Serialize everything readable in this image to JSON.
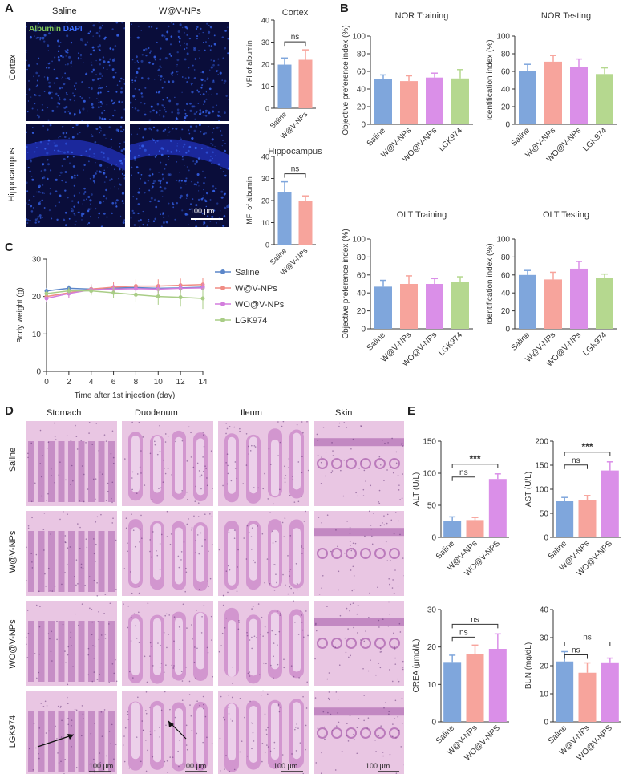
{
  "panel_labels": {
    "A": "A",
    "B": "B",
    "C": "C",
    "D": "D",
    "E": "E"
  },
  "panelA": {
    "col_titles": [
      "Saline",
      "W@V-NPs"
    ],
    "row_titles": [
      "Cortex",
      "Hippocampus"
    ],
    "legend_albumin": "Albumin",
    "legend_dapi": "DAPI",
    "scale_bar": "100 μm",
    "colors": {
      "albumin": "#7ec85a",
      "dapi": "#3a6cff",
      "tissue": "#0a0d3a"
    }
  },
  "panelD": {
    "col_titles": [
      "Stomach",
      "Duodenum",
      "Ileum",
      "Skin"
    ],
    "row_titles": [
      "Saline",
      "W@V-NPs",
      "WO@V-NPs",
      "LGK974"
    ],
    "scale_bars": [
      "100 μm",
      "100 μm",
      "100 μm",
      "100 μm"
    ],
    "colors": {
      "he_light": "#e9c6e3",
      "he_dark": "#9c4aa2"
    }
  },
  "chart_data": [
    {
      "id": "A-cortex",
      "type": "bar",
      "title": "Cortex",
      "ylabel": "MFI of albumin",
      "categories": [
        "Saline",
        "W@V-NPs"
      ],
      "values": [
        19.8,
        22.0
      ],
      "errors": [
        3.0,
        4.5
      ],
      "ylim": [
        0,
        40
      ],
      "yticks": [
        0,
        10,
        20,
        30,
        40
      ],
      "sig": [
        {
          "from": 0,
          "to": 1,
          "label": "ns"
        }
      ]
    },
    {
      "id": "A-hippocampus",
      "type": "bar",
      "title": "Hippocampus",
      "ylabel": "MFI of albumin",
      "categories": [
        "Saline",
        "W@V-NPs"
      ],
      "values": [
        24.0,
        19.8
      ],
      "errors": [
        4.5,
        2.3
      ],
      "ylim": [
        0,
        40
      ],
      "yticks": [
        0,
        10,
        20,
        30,
        40
      ],
      "sig": [
        {
          "from": 0,
          "to": 1,
          "label": "ns"
        }
      ]
    },
    {
      "id": "B-nor-training",
      "type": "bar",
      "title": "NOR Training",
      "ylabel": "Objective preference index (%)",
      "categories": [
        "Saline",
        "W@V-NPs",
        "WO@V-NPs",
        "LGK974"
      ],
      "values": [
        51,
        49,
        53,
        52
      ],
      "errors": [
        5,
        6,
        5,
        10
      ],
      "ylim": [
        0,
        100
      ],
      "yticks": [
        0,
        20,
        40,
        60,
        80,
        100
      ],
      "sig": []
    },
    {
      "id": "B-nor-testing",
      "type": "bar",
      "title": "NOR Testing",
      "ylabel": "Identification index (%)",
      "categories": [
        "Saline",
        "W@V-NPs",
        "WO@V-NPs",
        "LGK974"
      ],
      "values": [
        60,
        71,
        65,
        57
      ],
      "errors": [
        8,
        7,
        9,
        7
      ],
      "ylim": [
        0,
        100
      ],
      "yticks": [
        0,
        20,
        40,
        60,
        80,
        100
      ],
      "sig": []
    },
    {
      "id": "B-olt-training",
      "type": "bar",
      "title": "OLT Training",
      "ylabel": "Objective preference index (%)",
      "categories": [
        "Saline",
        "W@V-NPs",
        "WO@V-NPs",
        "LGK974"
      ],
      "values": [
        47,
        50,
        50,
        52
      ],
      "errors": [
        7,
        9,
        6,
        6
      ],
      "ylim": [
        0,
        100
      ],
      "yticks": [
        0,
        20,
        40,
        60,
        80,
        100
      ],
      "sig": []
    },
    {
      "id": "B-olt-testing",
      "type": "bar",
      "title": "OLT Testing",
      "ylabel": "Identification index (%)",
      "categories": [
        "Saline",
        "W@V-NPs",
        "WO@V-NPs",
        "LGK974"
      ],
      "values": [
        60,
        55,
        67,
        57
      ],
      "errors": [
        5,
        8,
        8,
        4
      ],
      "ylim": [
        0,
        100
      ],
      "yticks": [
        0,
        20,
        40,
        60,
        80,
        100
      ],
      "sig": []
    },
    {
      "id": "C-body-weight",
      "type": "line",
      "title": "",
      "xlabel": "Time after 1st injection (day)",
      "ylabel": "Body weight (g)",
      "x": [
        0,
        2,
        4,
        6,
        8,
        10,
        12,
        14
      ],
      "xlim": [
        0,
        14
      ],
      "xticks": [
        0,
        2,
        4,
        6,
        8,
        10,
        12,
        14
      ],
      "ylim": [
        0,
        30
      ],
      "yticks": [
        0,
        10,
        20,
        30
      ],
      "legend": "right",
      "series": [
        {
          "name": "Saline",
          "color": "#5b86c9",
          "values": [
            21.5,
            22.2,
            22.0,
            22.3,
            22.4,
            22.2,
            22.3,
            22.5
          ],
          "errors": [
            0.8,
            0.8,
            0.8,
            0.8,
            0.9,
            0.9,
            0.9,
            1.0
          ]
        },
        {
          "name": "W@V-NPs",
          "color": "#f08c84",
          "values": [
            20.0,
            21.0,
            22.0,
            22.5,
            22.8,
            22.8,
            23.0,
            23.2
          ],
          "errors": [
            1.0,
            1.2,
            1.3,
            1.5,
            1.8,
            1.8,
            1.8,
            1.8
          ]
        },
        {
          "name": "WO@V-NPs",
          "color": "#d37ddd",
          "values": [
            19.5,
            20.8,
            21.8,
            22.0,
            22.1,
            22.0,
            22.2,
            22.3
          ],
          "errors": [
            1.0,
            1.2,
            1.3,
            1.2,
            1.2,
            1.2,
            1.2,
            1.2
          ]
        },
        {
          "name": "LGK974",
          "color": "#a9cd86",
          "values": [
            20.8,
            21.5,
            21.5,
            21.0,
            20.5,
            20.0,
            19.8,
            19.5
          ],
          "errors": [
            0.9,
            1.0,
            1.2,
            1.5,
            2.0,
            2.2,
            2.5,
            2.8
          ]
        }
      ]
    },
    {
      "id": "E-alt",
      "type": "bar",
      "title": "",
      "ylabel": "ALT (U/L)",
      "categories": [
        "Saline",
        "W@V-NPs",
        "WO@V-NPS"
      ],
      "values": [
        26,
        27,
        91
      ],
      "errors": [
        6,
        4,
        8
      ],
      "ylim": [
        0,
        150
      ],
      "yticks": [
        0,
        50,
        100,
        150
      ],
      "sig": [
        {
          "from": 0,
          "to": 1,
          "label": "ns"
        },
        {
          "from": 0,
          "to": 2,
          "label": "***"
        }
      ]
    },
    {
      "id": "E-ast",
      "type": "bar",
      "title": "",
      "ylabel": "AST (U/L)",
      "categories": [
        "Saline",
        "W@V-NPs",
        "WO@V-NPS"
      ],
      "values": [
        75,
        77,
        139
      ],
      "errors": [
        8,
        10,
        18
      ],
      "ylim": [
        0,
        200
      ],
      "yticks": [
        0,
        50,
        100,
        150,
        200
      ],
      "sig": [
        {
          "from": 0,
          "to": 1,
          "label": "ns"
        },
        {
          "from": 0,
          "to": 2,
          "label": "***"
        }
      ]
    },
    {
      "id": "E-crea",
      "type": "bar",
      "title": "",
      "ylabel": "CREA (μmol/L)",
      "categories": [
        "Saline",
        "W@V-NPs",
        "WO@V-NPS"
      ],
      "values": [
        16,
        18,
        19.5
      ],
      "errors": [
        1.8,
        2.5,
        4.0
      ],
      "ylim": [
        0,
        30
      ],
      "yticks": [
        0,
        10,
        20,
        30
      ],
      "sig": [
        {
          "from": 0,
          "to": 1,
          "label": "ns"
        },
        {
          "from": 0,
          "to": 2,
          "label": "ns"
        }
      ]
    },
    {
      "id": "E-bun",
      "type": "bar",
      "title": "",
      "ylabel": "BUN (mg/dL)",
      "categories": [
        "Saline",
        "W@V-NPs",
        "WO@V-NPS"
      ],
      "values": [
        21.5,
        17.5,
        21.2
      ],
      "errors": [
        3.5,
        3.5,
        1.5
      ],
      "ylim": [
        0,
        40
      ],
      "yticks": [
        0,
        10,
        20,
        30,
        40
      ],
      "sig": [
        {
          "from": 0,
          "to": 1,
          "label": "ns"
        },
        {
          "from": 0,
          "to": 2,
          "label": "ns"
        }
      ]
    }
  ],
  "bar_colors": [
    "#7fa6dc",
    "#f7a49c",
    "#da8fe8",
    "#b5d88f"
  ]
}
